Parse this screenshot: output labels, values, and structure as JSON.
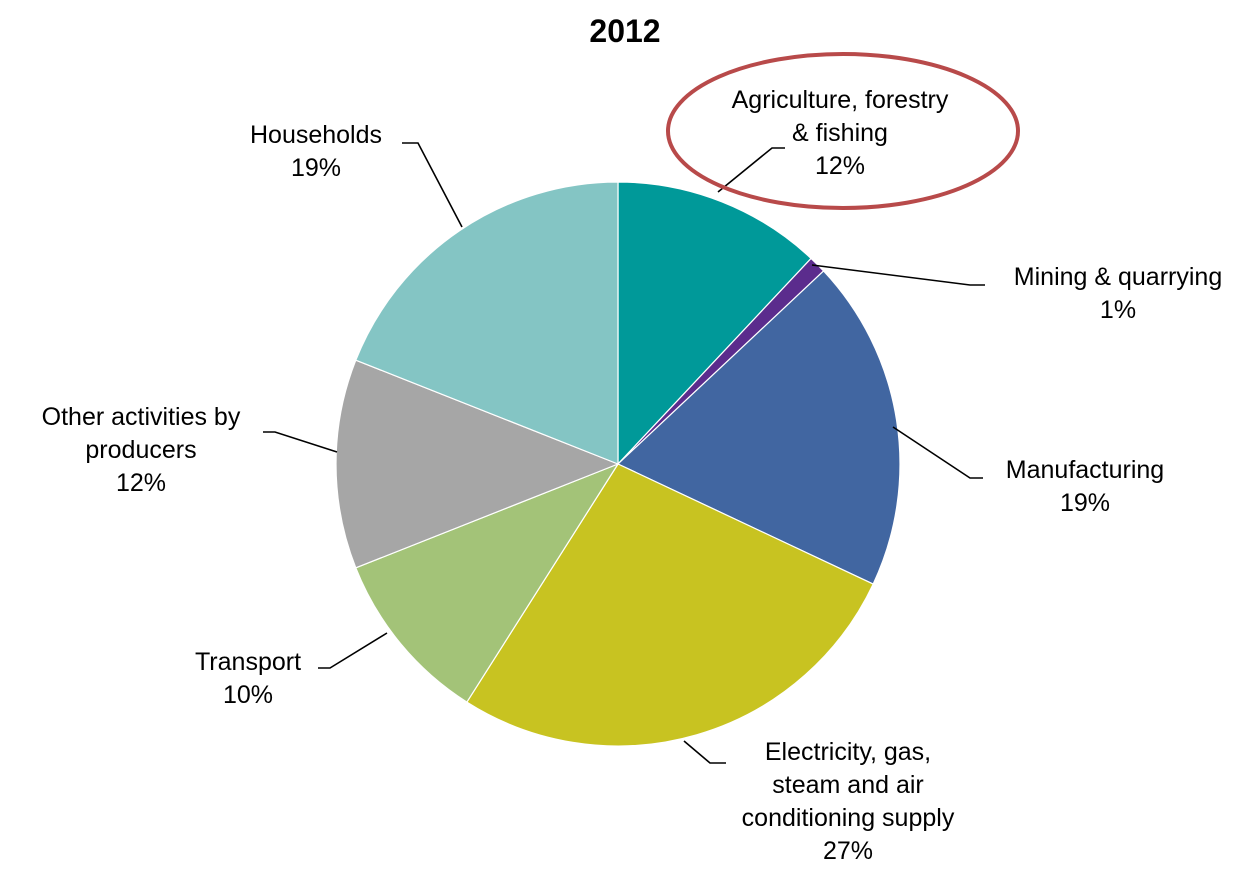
{
  "chart_data": {
    "type": "pie",
    "title": "2012",
    "slices": [
      {
        "name": "Agriculture, forestry & fishing",
        "label_lines": [
          "Agriculture, forestry",
          "& fishing"
        ],
        "value": 12,
        "value_label": "12%",
        "color": "#009999"
      },
      {
        "name": "Mining & quarrying",
        "label_lines": [
          "Mining & quarrying"
        ],
        "value": 1,
        "value_label": "1%",
        "color": "#5B2C8D"
      },
      {
        "name": "Manufacturing",
        "label_lines": [
          "Manufacturing"
        ],
        "value": 19,
        "value_label": "19%",
        "color": "#4166A1"
      },
      {
        "name": "Electricity, gas, steam and air conditioning supply",
        "label_lines": [
          "Electricity, gas,",
          "steam and air",
          "conditioning supply"
        ],
        "value": 27,
        "value_label": "27%",
        "color": "#C8C321"
      },
      {
        "name": "Transport",
        "label_lines": [
          "Transport"
        ],
        "value": 10,
        "value_label": "10%",
        "color": "#A3C378"
      },
      {
        "name": "Other activities by producers",
        "label_lines": [
          "Other activities by",
          "producers"
        ],
        "value": 12,
        "value_label": "12%",
        "color": "#A6A6A6"
      },
      {
        "name": "Households",
        "label_lines": [
          "Households"
        ],
        "value": 19,
        "value_label": "19%",
        "color": "#84C5C4"
      }
    ],
    "start_angle": "12 o'clock",
    "direction": "clockwise",
    "highlight": {
      "slice": "Agriculture, forestry & fishing",
      "shape": "ellipse",
      "color": "#B84A4A"
    },
    "legend": "none"
  }
}
